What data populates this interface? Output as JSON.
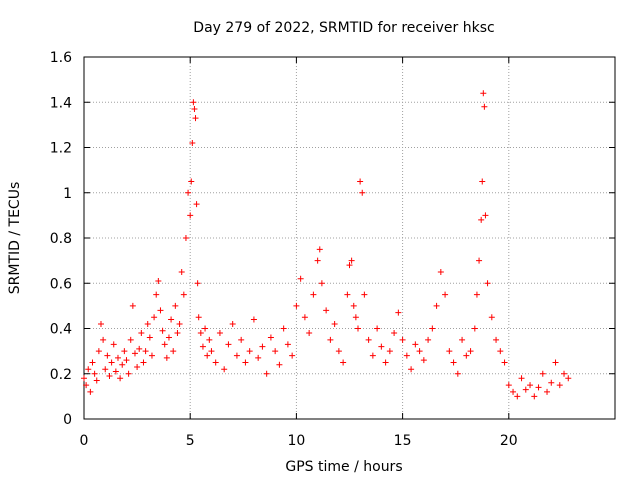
{
  "chart_data": {
    "type": "scatter",
    "title": "Day 279 of 2022, SRMTID for receiver hksc",
    "xlabel": "GPS time / hours",
    "ylabel": "SRMTID / TECUs",
    "xlim": [
      0,
      25
    ],
    "ylim": [
      0,
      1.6
    ],
    "xticks": [
      0,
      5,
      10,
      15,
      20
    ],
    "yticks": [
      0,
      0.2,
      0.4,
      0.6,
      0.8,
      1,
      1.2,
      1.4,
      1.6
    ],
    "xtick_labels": [
      "0",
      "5",
      "10",
      "15",
      "20"
    ],
    "ytick_labels": [
      "0",
      "0.2",
      "0.4",
      "0.6",
      "0.8",
      "1",
      "1.2",
      "1.4",
      "1.6"
    ],
    "grid": true,
    "marker": "+",
    "color": "#ff0000",
    "series": [
      {
        "name": "SRMTID",
        "x": [
          0.0,
          0.1,
          0.2,
          0.3,
          0.4,
          0.5,
          0.6,
          0.7,
          0.8,
          0.9,
          1.0,
          1.1,
          1.2,
          1.3,
          1.4,
          1.5,
          1.6,
          1.7,
          1.8,
          1.9,
          2.0,
          2.1,
          2.2,
          2.3,
          2.4,
          2.5,
          2.6,
          2.7,
          2.8,
          2.9,
          3.0,
          3.1,
          3.2,
          3.3,
          3.4,
          3.5,
          3.6,
          3.7,
          3.8,
          3.9,
          4.0,
          4.1,
          4.2,
          4.3,
          4.4,
          4.5,
          4.6,
          4.7,
          4.8,
          4.9,
          5.0,
          5.05,
          5.1,
          5.15,
          5.2,
          5.25,
          5.3,
          5.35,
          5.4,
          5.5,
          5.6,
          5.7,
          5.8,
          5.9,
          6.0,
          6.2,
          6.4,
          6.6,
          6.8,
          7.0,
          7.2,
          7.4,
          7.6,
          7.8,
          8.0,
          8.2,
          8.4,
          8.6,
          8.8,
          9.0,
          9.2,
          9.4,
          9.6,
          9.8,
          10.0,
          10.2,
          10.4,
          10.6,
          10.8,
          11.0,
          11.1,
          11.2,
          11.4,
          11.6,
          11.8,
          12.0,
          12.2,
          12.4,
          12.5,
          12.6,
          12.7,
          12.8,
          12.9,
          13.0,
          13.1,
          13.2,
          13.4,
          13.6,
          13.8,
          14.0,
          14.2,
          14.4,
          14.6,
          14.8,
          15.0,
          15.2,
          15.4,
          15.6,
          15.8,
          16.0,
          16.2,
          16.4,
          16.6,
          16.8,
          17.0,
          17.2,
          17.4,
          17.6,
          17.8,
          18.0,
          18.2,
          18.4,
          18.5,
          18.6,
          18.7,
          18.75,
          18.8,
          18.85,
          18.9,
          19.0,
          19.2,
          19.4,
          19.6,
          19.8,
          20.0,
          20.2,
          20.4,
          20.6,
          20.8,
          21.0,
          21.2,
          21.4,
          21.6,
          21.8,
          22.0,
          22.2,
          22.4,
          22.6,
          22.8
        ],
        "y": [
          0.18,
          0.15,
          0.22,
          0.12,
          0.25,
          0.2,
          0.17,
          0.3,
          0.42,
          0.35,
          0.22,
          0.28,
          0.19,
          0.25,
          0.33,
          0.21,
          0.27,
          0.18,
          0.24,
          0.3,
          0.26,
          0.2,
          0.35,
          0.5,
          0.29,
          0.23,
          0.31,
          0.38,
          0.25,
          0.3,
          0.42,
          0.36,
          0.28,
          0.45,
          0.55,
          0.61,
          0.48,
          0.39,
          0.33,
          0.27,
          0.36,
          0.44,
          0.3,
          0.5,
          0.38,
          0.42,
          0.65,
          0.55,
          0.8,
          1.0,
          0.9,
          1.05,
          1.22,
          1.4,
          1.37,
          1.33,
          0.95,
          0.6,
          0.45,
          0.38,
          0.32,
          0.4,
          0.28,
          0.35,
          0.3,
          0.25,
          0.38,
          0.22,
          0.33,
          0.42,
          0.28,
          0.35,
          0.25,
          0.3,
          0.44,
          0.27,
          0.32,
          0.2,
          0.36,
          0.3,
          0.24,
          0.4,
          0.33,
          0.28,
          0.5,
          0.62,
          0.45,
          0.38,
          0.55,
          0.7,
          0.75,
          0.6,
          0.48,
          0.35,
          0.42,
          0.3,
          0.25,
          0.55,
          0.68,
          0.7,
          0.5,
          0.45,
          0.4,
          1.05,
          1.0,
          0.55,
          0.35,
          0.28,
          0.4,
          0.32,
          0.25,
          0.3,
          0.38,
          0.47,
          0.35,
          0.28,
          0.22,
          0.33,
          0.3,
          0.26,
          0.35,
          0.4,
          0.5,
          0.65,
          0.55,
          0.3,
          0.25,
          0.2,
          0.35,
          0.28,
          0.3,
          0.4,
          0.55,
          0.7,
          0.88,
          1.05,
          1.44,
          1.38,
          0.9,
          0.6,
          0.45,
          0.35,
          0.3,
          0.25,
          0.15,
          0.12,
          0.1,
          0.18,
          0.13,
          0.15,
          0.1,
          0.14,
          0.2,
          0.12,
          0.16,
          0.25,
          0.15,
          0.2,
          0.18
        ]
      }
    ]
  }
}
